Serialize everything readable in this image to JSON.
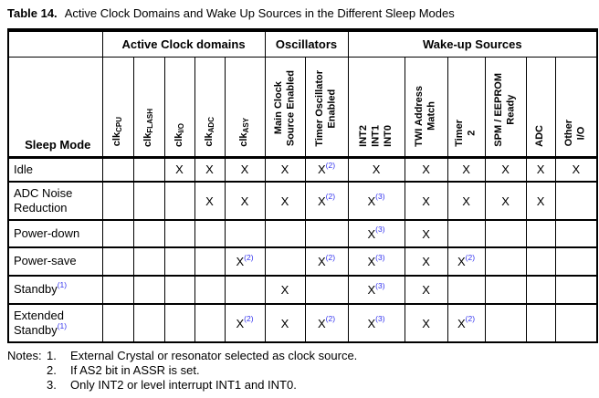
{
  "title": {
    "label": "Table 14.",
    "text": "Active Clock Domains and Wake Up Sources in the Different Sleep Modes"
  },
  "colors": {
    "footnote_blue": "#3333ee",
    "text_black": "#000000",
    "background": "#ffffff"
  },
  "table": {
    "sleep_mode_label": "Sleep Mode",
    "groups": [
      {
        "label": "Active Clock domains"
      },
      {
        "label": "Oscillators"
      },
      {
        "label": "Wake-up Sources"
      }
    ],
    "columns": [
      {
        "base": "clk",
        "sub": "CPU"
      },
      {
        "base": "clk",
        "sub": "FLASH"
      },
      {
        "base": "clk",
        "sub": "I/O"
      },
      {
        "base": "clk",
        "sub": "ADC"
      },
      {
        "base": "clk",
        "sub": "ASY"
      },
      {
        "label": "Main Clock\nSource Enabled"
      },
      {
        "label": "Timer Oscillator\nEnabled"
      },
      {
        "label": "INT2\nINT1\nINT0"
      },
      {
        "label": "TWI Address\nMatch"
      },
      {
        "label": "Timer\n2"
      },
      {
        "label": "SPM / EEPROM\nReady"
      },
      {
        "label": "ADC"
      },
      {
        "label": "Other\nI/O"
      }
    ],
    "rows": [
      {
        "label": "Idle",
        "sup": "",
        "cells": [
          "",
          "",
          "X",
          "X",
          "X",
          "X",
          "X(2)",
          "X",
          "X",
          "X",
          "X",
          "X",
          "X"
        ]
      },
      {
        "label": "ADC Noise Reduction",
        "sup": "",
        "cells": [
          "",
          "",
          "",
          "X",
          "X",
          "X",
          "X(2)",
          "X(3)",
          "X",
          "X",
          "X",
          "X",
          ""
        ]
      },
      {
        "label": "Power-down",
        "sup": "",
        "cells": [
          "",
          "",
          "",
          "",
          "",
          "",
          "",
          "X(3)",
          "X",
          "",
          "",
          "",
          ""
        ]
      },
      {
        "label": "Power-save",
        "sup": "",
        "cells": [
          "",
          "",
          "",
          "",
          "X(2)",
          "",
          "X(2)",
          "X(3)",
          "X",
          "X(2)",
          "",
          "",
          ""
        ]
      },
      {
        "label": "Standby",
        "sup": "(1)",
        "cells": [
          "",
          "",
          "",
          "",
          "",
          "X",
          "",
          "X(3)",
          "X",
          "",
          "",
          "",
          ""
        ]
      },
      {
        "label": "Extended Standby",
        "sup": "(1)",
        "cells": [
          "",
          "",
          "",
          "",
          "X(2)",
          "X",
          "X(2)",
          "X(3)",
          "X",
          "X(2)",
          "",
          "",
          ""
        ]
      }
    ]
  },
  "notes": {
    "label": "Notes:",
    "items": [
      {
        "num": "1.",
        "text": "External Crystal or resonator selected as clock source."
      },
      {
        "num": "2.",
        "text": "If AS2 bit in ASSR is set."
      },
      {
        "num": "3.",
        "text": "Only INT2 or level interrupt INT1 and INT0."
      }
    ]
  }
}
